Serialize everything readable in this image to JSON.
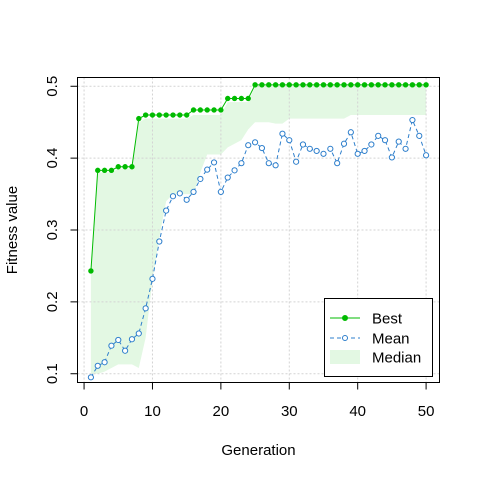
{
  "chart_data": {
    "type": "line",
    "xlabel": "Generation",
    "ylabel": "Fitness value",
    "xlim": [
      -0.96,
      51.96
    ],
    "ylim": [
      0.0878,
      0.5122
    ],
    "x_ticks": [
      0,
      10,
      20,
      30,
      40,
      50
    ],
    "y_ticks": [
      0.1,
      0.2,
      0.3,
      0.4,
      0.5
    ],
    "grid": true,
    "legend_position": "bottom-right",
    "x": [
      1,
      2,
      3,
      4,
      5,
      6,
      7,
      8,
      9,
      10,
      11,
      12,
      13,
      14,
      15,
      16,
      17,
      18,
      19,
      20,
      21,
      22,
      23,
      24,
      25,
      26,
      27,
      28,
      29,
      30,
      31,
      32,
      33,
      34,
      35,
      36,
      37,
      38,
      39,
      40,
      41,
      42,
      43,
      44,
      45,
      46,
      47,
      48,
      49,
      50
    ],
    "series": [
      {
        "name": "Best",
        "style": "solid line with filled points",
        "color": "#00BB00",
        "values": [
          0.243,
          0.383,
          0.383,
          0.383,
          0.388,
          0.388,
          0.388,
          0.455,
          0.46,
          0.46,
          0.46,
          0.46,
          0.46,
          0.46,
          0.46,
          0.467,
          0.467,
          0.467,
          0.467,
          0.467,
          0.483,
          0.483,
          0.483,
          0.483,
          0.502,
          0.502,
          0.502,
          0.502,
          0.502,
          0.502,
          0.502,
          0.502,
          0.502,
          0.502,
          0.502,
          0.502,
          0.502,
          0.502,
          0.502,
          0.502,
          0.502,
          0.502,
          0.502,
          0.502,
          0.502,
          0.502,
          0.502,
          0.502,
          0.502,
          0.502
        ]
      },
      {
        "name": "Mean",
        "style": "dashed line with open circles",
        "color": "#2E7FCC",
        "values": [
          0.095,
          0.111,
          0.116,
          0.139,
          0.147,
          0.132,
          0.148,
          0.156,
          0.191,
          0.232,
          0.284,
          0.327,
          0.347,
          0.351,
          0.342,
          0.353,
          0.371,
          0.384,
          0.394,
          0.353,
          0.373,
          0.383,
          0.393,
          0.418,
          0.422,
          0.414,
          0.393,
          0.39,
          0.434,
          0.425,
          0.395,
          0.419,
          0.413,
          0.41,
          0.406,
          0.413,
          0.393,
          0.42,
          0.436,
          0.406,
          0.41,
          0.419,
          0.431,
          0.425,
          0.401,
          0.423,
          0.413,
          0.453,
          0.431,
          0.404
        ]
      },
      {
        "name": "Median",
        "style": "filled band",
        "color": "#E3F8E3",
        "lower": [
          0.1,
          0.1,
          0.103,
          0.108,
          0.113,
          0.113,
          0.113,
          0.108,
          0.15,
          0.23,
          0.29,
          0.34,
          0.35,
          0.35,
          0.35,
          0.35,
          0.38,
          0.405,
          0.405,
          0.405,
          0.415,
          0.42,
          0.425,
          0.44,
          0.45,
          0.45,
          0.45,
          0.448,
          0.448,
          0.455,
          0.455,
          0.455,
          0.455,
          0.455,
          0.455,
          0.455,
          0.455,
          0.455,
          0.46,
          0.46,
          0.46,
          0.46,
          0.46,
          0.46,
          0.46,
          0.46,
          0.46,
          0.46,
          0.46,
          0.46
        ],
        "upper": [
          0.24,
          0.38,
          0.38,
          0.38,
          0.385,
          0.385,
          0.385,
          0.45,
          0.455,
          0.455,
          0.455,
          0.455,
          0.455,
          0.455,
          0.455,
          0.46,
          0.46,
          0.46,
          0.46,
          0.46,
          0.478,
          0.478,
          0.478,
          0.478,
          0.5,
          0.5,
          0.5,
          0.5,
          0.5,
          0.5,
          0.5,
          0.5,
          0.5,
          0.5,
          0.5,
          0.5,
          0.5,
          0.5,
          0.5,
          0.5,
          0.5,
          0.5,
          0.5,
          0.5,
          0.5,
          0.5,
          0.5,
          0.5,
          0.5,
          0.5
        ]
      }
    ]
  }
}
